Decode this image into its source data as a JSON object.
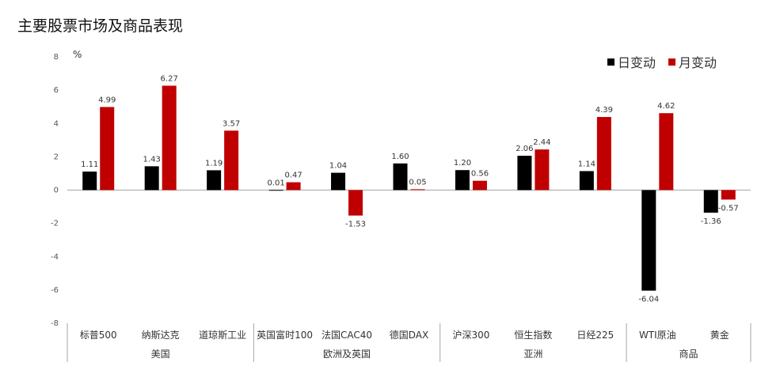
{
  "chart_data": {
    "type": "bar",
    "title": "主要股票市场及商品表现",
    "ylabel": "%",
    "ylim": [
      -8,
      8
    ],
    "yticks": [
      8,
      6,
      4,
      2,
      0,
      -2,
      -4,
      -6,
      -8
    ],
    "legend_position": "top-right",
    "grid": false,
    "categories": [
      "标普500",
      "纳斯达克",
      "道琼斯工业",
      "英国富时100",
      "法国CAC40",
      "德国DAX",
      "沪深300",
      "恒生指数",
      "日经225",
      "WTI原油",
      "黄金"
    ],
    "groups": [
      {
        "name": "美国",
        "count": 3
      },
      {
        "name": "欧洲及英国",
        "count": 3
      },
      {
        "name": "亚洲",
        "count": 3
      },
      {
        "name": "商品",
        "count": 2
      }
    ],
    "series": [
      {
        "name": "日变动",
        "color": "#000000",
        "values": [
          1.11,
          1.43,
          1.19,
          0.01,
          1.04,
          1.6,
          1.2,
          2.06,
          1.14,
          -6.04,
          -1.36
        ]
      },
      {
        "name": "月变动",
        "color": "#c00000",
        "values": [
          4.99,
          6.27,
          3.57,
          0.47,
          -1.53,
          0.05,
          0.56,
          2.44,
          4.39,
          4.62,
          -0.57
        ]
      }
    ]
  }
}
